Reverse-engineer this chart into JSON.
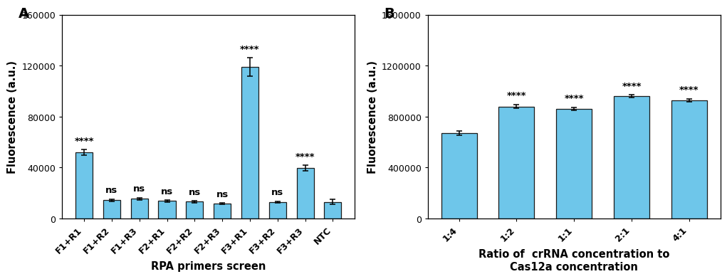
{
  "panel_A": {
    "categories": [
      "F1+R1",
      "F1+R2",
      "F1+R3",
      "F2+R1",
      "F2+R2",
      "F2+R3",
      "F3+R1",
      "F3+R2",
      "F3+R3",
      "NTC"
    ],
    "values": [
      52000,
      14500,
      15500,
      13800,
      13200,
      11800,
      119000,
      13000,
      39500,
      13000
    ],
    "errors": [
      2200,
      900,
      900,
      700,
      700,
      600,
      7000,
      600,
      2200,
      2000
    ],
    "annotations": [
      "****",
      "ns",
      "ns",
      "ns",
      "ns",
      "ns",
      "****",
      "ns",
      "****",
      ""
    ],
    "bar_color": "#6EC6EA",
    "bar_edge_color": "#1A1A1A",
    "ylabel": "Fluorescence (a.u.)",
    "xlabel": "RPA primers screen",
    "ylim": [
      0,
      160000
    ],
    "yticks": [
      0,
      40000,
      80000,
      120000,
      160000
    ],
    "panel_label": "A"
  },
  "panel_B": {
    "categories": [
      "1:4",
      "1:2",
      "1:1",
      "2:1",
      "4:1"
    ],
    "values": [
      670000,
      880000,
      860000,
      960000,
      930000
    ],
    "errors": [
      16000,
      16000,
      13000,
      12000,
      11000
    ],
    "annotations": [
      "",
      "****",
      "****",
      "****",
      "****"
    ],
    "bar_color": "#6EC6EA",
    "bar_edge_color": "#1A1A1A",
    "ylabel": "Fluorescence (a.u.)",
    "xlabel": "Ratio of  crRNA concentration to\nCas12a concentration",
    "ylim": [
      0,
      1600000
    ],
    "yticks": [
      0,
      400000,
      800000,
      1200000,
      1600000
    ],
    "panel_label": "B"
  },
  "bar_width": 0.62,
  "annotation_fontsize": 9.5,
  "label_fontsize": 10.5,
  "tick_fontsize": 9,
  "panel_label_fontsize": 14,
  "figure_width": 10.27,
  "figure_height": 3.98,
  "dpi": 100
}
